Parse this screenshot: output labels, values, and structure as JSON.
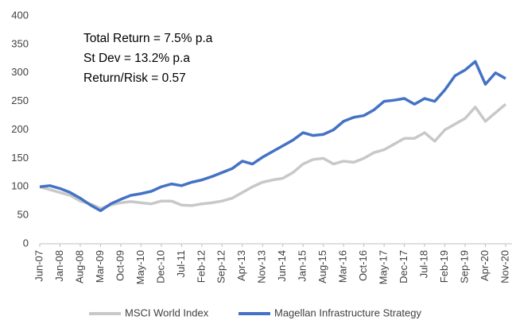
{
  "chart_data": {
    "type": "line",
    "annotations": [
      "Total Return = 7.5% p.a",
      "St Dev = 13.2% p.a",
      "Return/Risk = 0.57"
    ],
    "categories": [
      "Jun-07",
      null,
      "Jan-08",
      null,
      "Aug-08",
      null,
      "Mar-09",
      null,
      "Oct-09",
      null,
      "May-10",
      null,
      "Dec-10",
      null,
      "Jul-11",
      null,
      "Feb-12",
      null,
      "Sep-12",
      null,
      "Apr-13",
      null,
      "Nov-13",
      null,
      "Jun-14",
      null,
      "Jan-15",
      null,
      "Aug-15",
      null,
      "Mar-16",
      null,
      "Oct-16",
      null,
      "May-17",
      null,
      "Dec-17",
      null,
      "Jul-18",
      null,
      "Feb-19",
      null,
      "Sep-19",
      null,
      "Apr-20",
      null,
      "Nov-20"
    ],
    "series": [
      {
        "name": "MSCI World Index",
        "color": "#c8c8c8",
        "values": [
          100,
          95,
          90,
          85,
          75,
          70,
          62,
          68,
          72,
          74,
          72,
          70,
          75,
          75,
          68,
          67,
          70,
          72,
          75,
          80,
          90,
          100,
          108,
          112,
          115,
          125,
          140,
          148,
          150,
          140,
          145,
          143,
          150,
          160,
          165,
          175,
          185,
          185,
          195,
          180,
          200,
          210,
          220,
          240,
          215,
          230,
          245
        ]
      },
      {
        "name": "Magellan Infrastructure Strategy",
        "color": "#4472c4",
        "values": [
          100,
          102,
          97,
          90,
          80,
          68,
          58,
          70,
          78,
          85,
          88,
          92,
          100,
          105,
          102,
          108,
          112,
          118,
          125,
          132,
          145,
          140,
          152,
          162,
          172,
          182,
          195,
          190,
          192,
          200,
          215,
          222,
          225,
          235,
          250,
          252,
          255,
          245,
          255,
          250,
          270,
          295,
          305,
          320,
          280,
          300,
          290
        ]
      }
    ],
    "ylim": [
      0,
      400
    ],
    "yticks": [
      0,
      50,
      100,
      150,
      200,
      250,
      300,
      350,
      400
    ],
    "grid": false
  }
}
